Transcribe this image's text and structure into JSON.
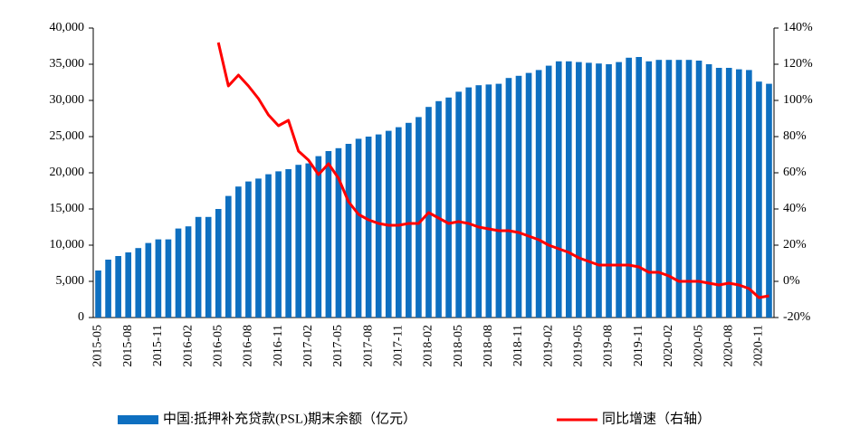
{
  "chart_data": {
    "type": "bar_line",
    "categories": [
      "2015-05",
      null,
      null,
      "2015-08",
      null,
      null,
      "2015-11",
      null,
      null,
      "2016-02",
      null,
      null,
      "2016-05",
      null,
      null,
      "2016-08",
      null,
      null,
      "2016-11",
      null,
      null,
      "2017-02",
      null,
      null,
      "2017-05",
      null,
      null,
      "2017-08",
      null,
      null,
      "2017-11",
      null,
      null,
      "2018-02",
      null,
      null,
      "2018-05",
      null,
      null,
      "2018-08",
      null,
      null,
      "2018-11",
      null,
      null,
      "2019-02",
      null,
      null,
      "2019-05",
      null,
      null,
      "2019-08",
      null,
      null,
      "2019-11",
      null,
      null,
      "2020-02",
      null,
      null,
      "2020-05",
      null,
      null,
      "2020-08",
      null,
      null,
      "2020-11",
      null
    ],
    "series": [
      {
        "name": "中国:抵押补充贷款(PSL)期末余额（亿元）",
        "color": "#0e6fc0",
        "type": "bar",
        "values": [
          6500,
          8000,
          8500,
          9000,
          9600,
          10300,
          10800,
          10800,
          12300,
          12600,
          13900,
          13900,
          15000,
          16800,
          18100,
          18800,
          19200,
          19800,
          20200,
          20500,
          21100,
          21300,
          22300,
          23000,
          23400,
          24000,
          24700,
          25000,
          25300,
          25800,
          26300,
          26900,
          27700,
          29100,
          29900,
          30400,
          31200,
          31800,
          32100,
          32200,
          32300,
          33100,
          33400,
          33800,
          34200,
          34800,
          35400,
          35400,
          35300,
          35200,
          35100,
          35000,
          35300,
          35900,
          36000,
          35400,
          35600,
          35600,
          35600,
          35600,
          35500,
          35000,
          34500,
          34500,
          34300,
          34200,
          32600,
          32300
        ]
      },
      {
        "name": "同比增速（右轴）",
        "color": "#ff0000",
        "type": "line",
        "axis": "y2",
        "values": [
          null,
          null,
          null,
          null,
          null,
          null,
          null,
          null,
          null,
          null,
          null,
          null,
          132,
          108,
          114,
          108,
          101,
          92,
          86,
          89,
          72,
          67,
          59,
          65,
          57,
          44,
          37,
          34,
          32,
          31,
          31,
          32,
          32,
          38,
          35,
          32,
          33,
          32,
          30,
          29,
          28,
          28,
          27,
          25,
          23,
          20,
          18,
          16,
          13,
          11,
          9,
          9,
          9,
          9,
          8,
          5,
          5,
          3,
          0,
          0,
          0,
          -1,
          -2,
          -1,
          -2,
          -4,
          -9,
          -8
        ]
      }
    ],
    "ylim": [
      0,
      40000
    ],
    "yticks": [
      0,
      {
        "value": 5000,
        "label": "5,000"
      },
      {
        "value": 10000,
        "label": "10,000"
      },
      {
        "value": 15000,
        "label": "15,000"
      },
      {
        "value": 20000,
        "label": "20,000"
      },
      {
        "value": 25000,
        "label": "25,000"
      },
      {
        "value": 30000,
        "label": "30,000"
      },
      {
        "value": 35000,
        "label": "35,000"
      },
      {
        "value": 40000,
        "label": "40,000"
      }
    ],
    "y2lim": [
      -20,
      140
    ],
    "y2ticks": [
      {
        "value": -20,
        "label": "-20%"
      },
      {
        "value": 0,
        "label": "0%"
      },
      {
        "value": 20,
        "label": "20%"
      },
      {
        "value": 40,
        "label": "40%"
      },
      {
        "value": 60,
        "label": "60%"
      },
      {
        "value": 80,
        "label": "80%"
      },
      {
        "value": 100,
        "label": "100%"
      },
      {
        "value": 120,
        "label": "120%"
      },
      {
        "value": 140,
        "label": "140%"
      }
    ],
    "legend": "bottom"
  }
}
